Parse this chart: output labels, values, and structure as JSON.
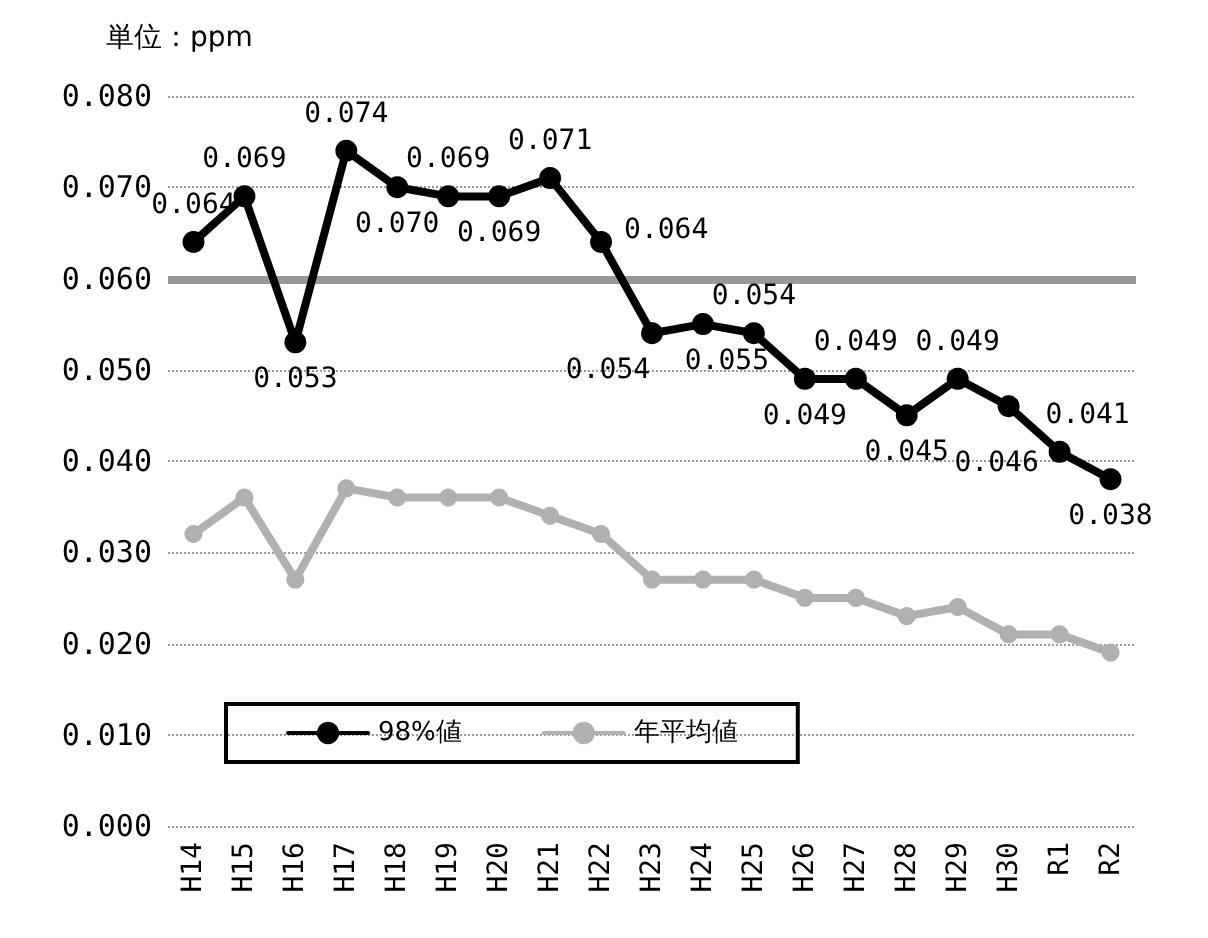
{
  "chart_data": {
    "type": "line",
    "annotations": [
      "単位：ppm"
    ],
    "categories": [
      "H14",
      "H15",
      "H16",
      "H17",
      "H18",
      "H19",
      "H20",
      "H21",
      "H22",
      "H23",
      "H24",
      "H25",
      "H26",
      "H27",
      "H28",
      "H29",
      "H30",
      "R1",
      "R2"
    ],
    "series": [
      {
        "name": "98%値",
        "color": "#000000",
        "values": [
          0.064,
          0.069,
          0.053,
          0.074,
          0.07,
          0.069,
          0.069,
          0.071,
          0.064,
          0.054,
          0.055,
          0.054,
          0.049,
          0.049,
          0.045,
          0.049,
          0.046,
          0.041,
          0.038
        ],
        "value_labels": [
          "0.064",
          "0.069",
          "0.053",
          "0.074",
          "0.070",
          "0.069",
          "0.069",
          "0.071",
          "0.064",
          "0.054",
          "0.055",
          "0.054",
          "0.049",
          "0.049",
          "0.045",
          "0.049",
          "0.046",
          "0.041",
          "0.038"
        ]
      },
      {
        "name": "年平均値",
        "color": "#b0b0b0",
        "values": [
          0.032,
          0.036,
          0.027,
          0.037,
          0.036,
          0.036,
          0.036,
          0.034,
          0.032,
          0.027,
          0.027,
          0.027,
          0.025,
          0.025,
          0.023,
          0.024,
          0.021,
          0.021,
          0.019
        ]
      }
    ],
    "ylim": [
      0,
      0.08
    ],
    "yticks": [
      {
        "value": 0,
        "label": "0.000"
      },
      {
        "value": 0.01,
        "label": "0.010"
      },
      {
        "value": 0.02,
        "label": "0.020"
      },
      {
        "value": 0.03,
        "label": "0.030"
      },
      {
        "value": 0.04,
        "label": "0.040"
      },
      {
        "value": 0.05,
        "label": "0.050"
      },
      {
        "value": 0.06,
        "label": "0.060"
      },
      {
        "value": 0.07,
        "label": "0.070"
      },
      {
        "value": 0.08,
        "label": "0.080"
      }
    ],
    "ref_lines": [
      {
        "axis": "y",
        "value": 0.06,
        "color": "#999999"
      }
    ],
    "grid": "y",
    "legend": "bottom left",
    "marker": "circle",
    "line_style": "solid"
  }
}
